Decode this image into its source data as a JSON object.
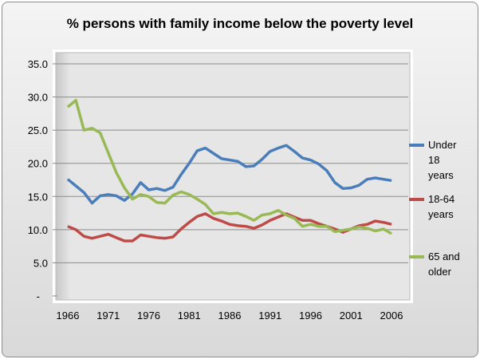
{
  "chart_data": {
    "type": "line",
    "title": "% persons with family income below the poverty level",
    "xlabel": "",
    "ylabel": "",
    "ylim": [
      0,
      35
    ],
    "yticks": [
      "-",
      "5.0",
      "10.0",
      "15.0",
      "20.0",
      "25.0",
      "30.0",
      "35.0"
    ],
    "xticks": [
      "1966",
      "1971",
      "1976",
      "1981",
      "1986",
      "1991",
      "1996",
      "2001",
      "2006"
    ],
    "x_start": 1966,
    "x_end": 2006,
    "legend_position": "right",
    "series": [
      {
        "name": "Under 18 years",
        "legend_lines": [
          "Under",
          "18",
          "years"
        ],
        "color": "#4a7ebb",
        "values": [
          17.6,
          16.6,
          15.6,
          14.0,
          15.1,
          15.3,
          15.1,
          14.4,
          15.4,
          17.1,
          16.0,
          16.2,
          15.9,
          16.4,
          18.3,
          20.0,
          21.9,
          22.3,
          21.5,
          20.7,
          20.5,
          20.3,
          19.5,
          19.6,
          20.6,
          21.8,
          22.3,
          22.7,
          21.8,
          20.8,
          20.5,
          19.9,
          18.9,
          17.1,
          16.2,
          16.3,
          16.7,
          17.6,
          17.8,
          17.6,
          17.4
        ]
      },
      {
        "name": "18-64 years",
        "legend_lines": [
          "18-64",
          "years"
        ],
        "color": "#be4b48",
        "values": [
          10.5,
          10.0,
          9.0,
          8.7,
          9.0,
          9.3,
          8.8,
          8.3,
          8.3,
          9.2,
          9.0,
          8.8,
          8.7,
          8.9,
          10.1,
          11.1,
          12.0,
          12.4,
          11.7,
          11.3,
          10.8,
          10.6,
          10.5,
          10.2,
          10.7,
          11.4,
          11.9,
          12.4,
          11.9,
          11.4,
          11.4,
          10.9,
          10.5,
          10.1,
          9.6,
          10.1,
          10.6,
          10.8,
          11.3,
          11.1,
          10.8
        ]
      },
      {
        "name": "65 and older",
        "legend_lines": [
          "65 and",
          "older"
        ],
        "color": "#98b954",
        "values": [
          28.5,
          29.5,
          25.0,
          25.3,
          24.6,
          21.6,
          18.6,
          16.3,
          14.6,
          15.3,
          15.0,
          14.1,
          14.0,
          15.2,
          15.7,
          15.3,
          14.6,
          13.8,
          12.4,
          12.6,
          12.4,
          12.5,
          12.0,
          11.4,
          12.2,
          12.4,
          12.9,
          12.2,
          11.7,
          10.5,
          10.8,
          10.5,
          10.5,
          9.7,
          9.9,
          10.1,
          10.4,
          10.2,
          9.8,
          10.1,
          9.4
        ]
      }
    ]
  }
}
